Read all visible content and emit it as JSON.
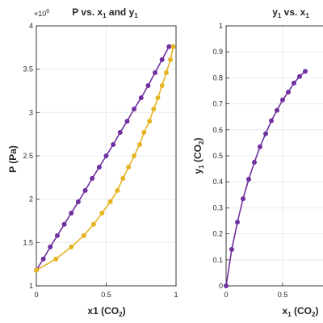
{
  "chart_data": [
    {
      "type": "line",
      "title": "P vs. x1 and y1",
      "title_parts": {
        "a": "P vs. x",
        "s1": "1",
        "b": " and y",
        "s2": "1"
      },
      "xlabel": "x1 (CO2)",
      "xlabel_parts": {
        "a": "x1 (CO",
        "s": "2",
        "b": ")"
      },
      "ylabel": "P (Pa)",
      "y_exponent_label": {
        "base": "×10",
        "exp": "6"
      },
      "xlim": [
        0,
        1
      ],
      "ylim": [
        1,
        4
      ],
      "xticks": [
        "0",
        "0.5",
        "1"
      ],
      "yticks": [
        "1",
        "1.5",
        "2",
        "2.5",
        "3",
        "3.5",
        "4"
      ],
      "grid": true,
      "series": [
        {
          "color": "#7030a0",
          "x": [
            0,
            0.05,
            0.1,
            0.15,
            0.2,
            0.25,
            0.3,
            0.35,
            0.4,
            0.45,
            0.5,
            0.55,
            0.6,
            0.65,
            0.7,
            0.75,
            0.8,
            0.85,
            0.9,
            0.95
          ],
          "y": [
            1.18,
            1.31,
            1.45,
            1.58,
            1.71,
            1.84,
            1.97,
            2.1,
            2.24,
            2.37,
            2.5,
            2.63,
            2.77,
            2.9,
            3.04,
            3.17,
            3.31,
            3.46,
            3.61,
            3.76
          ]
        },
        {
          "color": "#e6b422",
          "x": [
            0,
            0.14,
            0.25,
            0.34,
            0.41,
            0.47,
            0.53,
            0.58,
            0.62,
            0.66,
            0.7,
            0.74,
            0.77,
            0.81,
            0.84,
            0.87,
            0.9,
            0.93,
            0.96,
            0.98
          ],
          "y": [
            1.18,
            1.31,
            1.45,
            1.58,
            1.71,
            1.84,
            1.97,
            2.1,
            2.24,
            2.37,
            2.5,
            2.63,
            2.77,
            2.9,
            3.04,
            3.17,
            3.31,
            3.46,
            3.61,
            3.76
          ]
        }
      ]
    },
    {
      "type": "line",
      "title": "y1 vs. x1",
      "title_parts": {
        "a": "y",
        "s1": "1",
        "b": " vs. x",
        "s2": "1"
      },
      "xlabel": "x1 (CO2)",
      "xlabel_parts": {
        "a": "x",
        "s1": "1",
        "b": " (CO",
        "s2": "2",
        "c": ")"
      },
      "ylabel": "y1 (CO2)",
      "ylabel_parts": {
        "a": "y",
        "s1": "1",
        "b": " (CO",
        "s2": "2",
        "c": ")"
      },
      "xlim": [
        0,
        1
      ],
      "ylim": [
        0,
        1
      ],
      "xticks": [
        "0",
        "0.5"
      ],
      "yticks": [
        "0",
        "0.1",
        "0.2",
        "0.3",
        "0.4",
        "0.5",
        "0.6",
        "0.7",
        "0.8",
        "0.9",
        "1"
      ],
      "grid": true,
      "series": [
        {
          "color": "#7030a0",
          "x": [
            0,
            0.05,
            0.1,
            0.15,
            0.2,
            0.25,
            0.3,
            0.35,
            0.4,
            0.45,
            0.5,
            0.55,
            0.6,
            0.65,
            0.7
          ],
          "y": [
            0,
            0.14,
            0.245,
            0.335,
            0.41,
            0.475,
            0.535,
            0.585,
            0.635,
            0.675,
            0.715,
            0.745,
            0.78,
            0.805,
            0.825
          ]
        }
      ]
    }
  ]
}
